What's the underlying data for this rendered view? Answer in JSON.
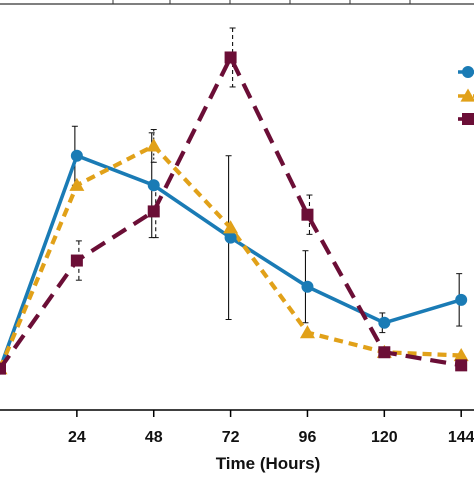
{
  "chart_data": {
    "type": "line",
    "title": "",
    "xlabel": "Time (Hours)",
    "ylabel": "",
    "x_ticks": [
      "24",
      "48",
      "72",
      "96",
      "120",
      "144"
    ],
    "x_view": [
      0,
      148
    ],
    "y_view": [
      -5,
      104
    ],
    "grid": false,
    "legend_position": "top-right",
    "series": [
      {
        "color": "#1a7bb5",
        "marker": "circle",
        "dash": "solid",
        "points": [
          {
            "x": 0,
            "y": 0
          },
          {
            "x": 24,
            "y": 65,
            "err": 9
          },
          {
            "x": 48,
            "y": 56,
            "err": 16
          },
          {
            "x": 72,
            "y": 40,
            "err": 25
          },
          {
            "x": 96,
            "y": 25,
            "err": 11
          },
          {
            "x": 120,
            "y": 14,
            "err": 3
          },
          {
            "x": 144,
            "y": 21,
            "err": 8
          }
        ]
      },
      {
        "color": "#e1a119",
        "marker": "triangle",
        "dash": "short",
        "points": [
          {
            "x": 0,
            "y": 0
          },
          {
            "x": 24,
            "y": 56
          },
          {
            "x": 48,
            "y": 68,
            "err": 5
          },
          {
            "x": 72,
            "y": 43
          },
          {
            "x": 96,
            "y": 11
          },
          {
            "x": 120,
            "y": 5
          },
          {
            "x": 144,
            "y": 4
          }
        ]
      },
      {
        "color": "#6b0e36",
        "marker": "square",
        "dash": "long",
        "points": [
          {
            "x": 0,
            "y": 0
          },
          {
            "x": 24,
            "y": 33,
            "err": 6
          },
          {
            "x": 48,
            "y": 48,
            "err": 8
          },
          {
            "x": 72,
            "y": 95,
            "err": 9
          },
          {
            "x": 96,
            "y": 47,
            "err": 6
          },
          {
            "x": 120,
            "y": 5
          },
          {
            "x": 144,
            "y": 1
          }
        ]
      }
    ]
  }
}
